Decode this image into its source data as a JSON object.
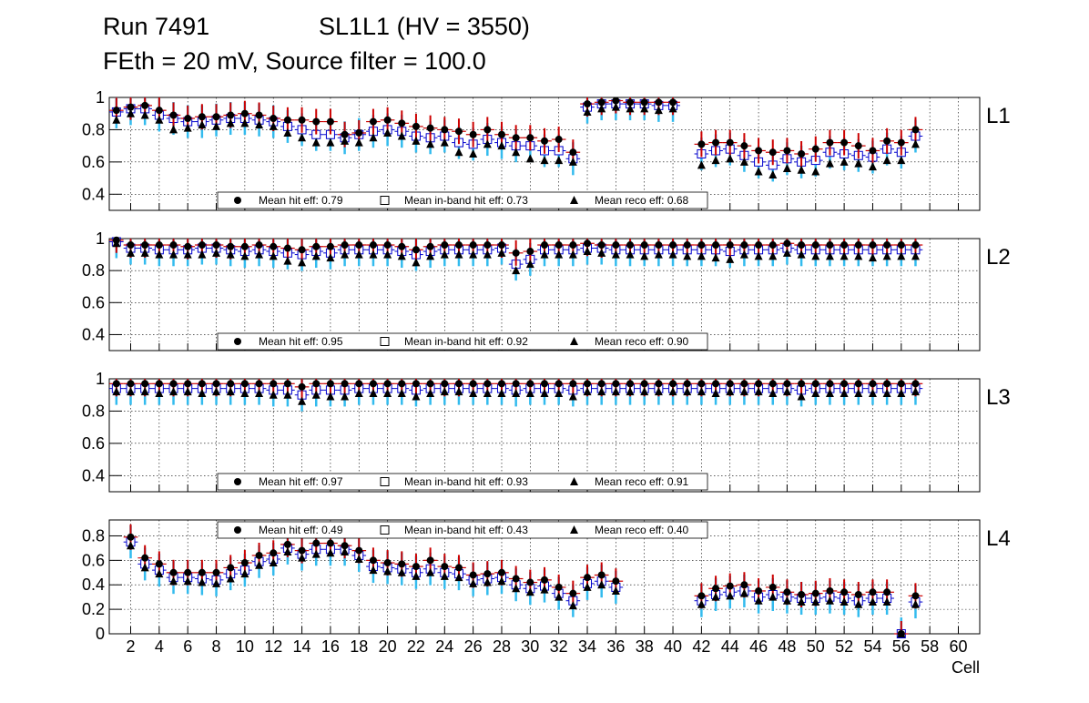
{
  "header": {
    "run": "Run 7491",
    "chamber": "SL1L1 (HV = 3550)",
    "settings": "FEth = 20 mV, Source filter = 100.0"
  },
  "colors": {
    "hit": "#000000",
    "hit_error": "#cc0000",
    "inband": "#0000cc",
    "inband_error": "#33bbee",
    "reco": "#000000",
    "grid": "#000000"
  },
  "chart_data": [
    {
      "type": "scatter",
      "panel_label": "L1",
      "xlabel": "",
      "ylim": [
        0.3,
        1.0
      ],
      "y_ticks": [
        "0.4",
        "0.6",
        "0.8",
        "1"
      ],
      "grid": true,
      "legend_placement": "bottom",
      "legend": [
        "Mean hit  eff: 0.79",
        "Mean in-band hit eff: 0.73",
        "Mean reco eff: 0.68"
      ],
      "cells": [
        1,
        2,
        3,
        4,
        5,
        6,
        7,
        8,
        9,
        10,
        11,
        12,
        13,
        14,
        15,
        16,
        17,
        18,
        19,
        20,
        21,
        22,
        23,
        24,
        25,
        26,
        27,
        28,
        29,
        30,
        31,
        32,
        33,
        34,
        35,
        36,
        37,
        38,
        39,
        40,
        41,
        42,
        43,
        44,
        45,
        46,
        47,
        48,
        49,
        50,
        51,
        52,
        53,
        54,
        55,
        56,
        57
      ],
      "series": [
        {
          "name": "Mean hit  eff: 0.79",
          "marker": "circle",
          "values": [
            0.92,
            0.94,
            0.95,
            0.92,
            0.89,
            0.87,
            0.88,
            0.88,
            0.89,
            0.9,
            0.89,
            0.87,
            0.86,
            0.86,
            0.85,
            0.85,
            0.77,
            0.78,
            0.85,
            0.86,
            0.84,
            0.82,
            0.81,
            0.8,
            0.79,
            0.77,
            0.8,
            0.77,
            0.75,
            0.75,
            0.73,
            0.74,
            0.66,
            0.96,
            0.97,
            0.98,
            0.97,
            0.97,
            0.97,
            0.97,
            null,
            0.71,
            0.72,
            0.72,
            0.7,
            0.67,
            0.66,
            0.67,
            0.65,
            0.68,
            0.72,
            0.72,
            0.7,
            0.67,
            0.73,
            0.72,
            0.8
          ]
        },
        {
          "name": "Mean in-band hit eff: 0.73",
          "marker": "open-square",
          "values": [
            0.91,
            0.93,
            0.93,
            0.89,
            0.87,
            0.85,
            0.85,
            0.86,
            0.87,
            0.87,
            0.86,
            0.85,
            0.82,
            0.8,
            0.77,
            0.77,
            0.75,
            0.77,
            0.79,
            0.8,
            0.79,
            0.76,
            0.75,
            0.76,
            0.72,
            0.71,
            0.74,
            0.72,
            0.7,
            0.7,
            0.67,
            0.67,
            0.62,
            0.94,
            0.96,
            0.96,
            0.96,
            0.96,
            0.95,
            0.95,
            null,
            0.65,
            0.67,
            0.68,
            0.64,
            0.6,
            0.58,
            0.62,
            0.6,
            0.61,
            0.66,
            0.65,
            0.64,
            0.63,
            0.68,
            0.66,
            0.76
          ]
        },
        {
          "name": "Mean reco eff: 0.68",
          "marker": "triangle",
          "values": [
            0.86,
            0.9,
            0.89,
            0.86,
            0.8,
            0.81,
            0.83,
            0.82,
            0.84,
            0.84,
            0.83,
            0.82,
            0.78,
            0.75,
            0.72,
            0.72,
            0.73,
            0.72,
            0.75,
            0.78,
            0.76,
            0.73,
            0.71,
            0.72,
            0.66,
            0.65,
            0.71,
            0.7,
            0.66,
            0.62,
            0.61,
            0.61,
            0.6,
            0.91,
            0.93,
            0.94,
            0.93,
            0.93,
            0.92,
            0.93,
            null,
            0.58,
            0.61,
            0.62,
            0.6,
            0.54,
            0.52,
            0.56,
            0.55,
            0.54,
            0.59,
            0.6,
            0.59,
            0.57,
            0.61,
            0.61,
            0.71
          ]
        }
      ]
    },
    {
      "type": "scatter",
      "panel_label": "L2",
      "xlabel": "",
      "ylim": [
        0.3,
        1.0
      ],
      "y_ticks": [
        "0.4",
        "0.6",
        "0.8",
        "1"
      ],
      "grid": true,
      "legend_placement": "bottom",
      "legend": [
        "Mean hit  eff: 0.95",
        "Mean in-band hit eff: 0.92",
        "Mean reco eff: 0.90"
      ],
      "cells": [
        1,
        2,
        3,
        4,
        5,
        6,
        7,
        8,
        9,
        10,
        11,
        12,
        13,
        14,
        15,
        16,
        17,
        18,
        19,
        20,
        21,
        22,
        23,
        24,
        25,
        26,
        27,
        28,
        29,
        30,
        31,
        32,
        33,
        34,
        35,
        36,
        37,
        38,
        39,
        40,
        41,
        42,
        43,
        44,
        45,
        46,
        47,
        48,
        49,
        50,
        51,
        52,
        53,
        54,
        55,
        56,
        57
      ],
      "series": [
        {
          "name": "Mean hit  eff: 0.95",
          "marker": "circle",
          "values": [
            0.99,
            0.96,
            0.96,
            0.96,
            0.96,
            0.95,
            0.96,
            0.96,
            0.95,
            0.95,
            0.96,
            0.95,
            0.94,
            0.93,
            0.95,
            0.95,
            0.96,
            0.96,
            0.96,
            0.96,
            0.95,
            0.93,
            0.95,
            0.96,
            0.96,
            0.96,
            0.96,
            0.96,
            0.91,
            0.92,
            0.96,
            0.96,
            0.96,
            0.97,
            0.96,
            0.96,
            0.96,
            0.96,
            0.96,
            0.96,
            0.96,
            0.96,
            0.96,
            0.96,
            0.96,
            0.96,
            0.96,
            0.97,
            0.96,
            0.96,
            0.96,
            0.96,
            0.96,
            0.96,
            0.96,
            0.96,
            0.96
          ]
        },
        {
          "name": "Mean in-band hit eff: 0.92",
          "marker": "open-square",
          "values": [
            0.98,
            0.94,
            0.94,
            0.93,
            0.93,
            0.93,
            0.94,
            0.94,
            0.93,
            0.92,
            0.93,
            0.92,
            0.91,
            0.9,
            0.92,
            0.91,
            0.93,
            0.93,
            0.93,
            0.93,
            0.92,
            0.9,
            0.92,
            0.93,
            0.93,
            0.93,
            0.93,
            0.94,
            0.84,
            0.87,
            0.93,
            0.93,
            0.93,
            0.94,
            0.94,
            0.93,
            0.93,
            0.93,
            0.93,
            0.93,
            0.93,
            0.93,
            0.93,
            0.92,
            0.93,
            0.93,
            0.93,
            0.94,
            0.93,
            0.93,
            0.93,
            0.93,
            0.93,
            0.93,
            0.93,
            0.93,
            0.93
          ]
        },
        {
          "name": "Mean reco eff: 0.90",
          "marker": "triangle",
          "values": [
            0.97,
            0.91,
            0.91,
            0.9,
            0.9,
            0.9,
            0.9,
            0.91,
            0.9,
            0.89,
            0.9,
            0.89,
            0.86,
            0.85,
            0.89,
            0.88,
            0.9,
            0.9,
            0.9,
            0.9,
            0.89,
            0.85,
            0.89,
            0.9,
            0.9,
            0.9,
            0.9,
            0.91,
            0.8,
            0.84,
            0.9,
            0.9,
            0.9,
            0.92,
            0.91,
            0.9,
            0.9,
            0.89,
            0.9,
            0.9,
            0.89,
            0.89,
            0.88,
            0.87,
            0.9,
            0.89,
            0.89,
            0.91,
            0.9,
            0.89,
            0.89,
            0.89,
            0.89,
            0.88,
            0.89,
            0.89,
            0.89
          ]
        }
      ]
    },
    {
      "type": "scatter",
      "panel_label": "L3",
      "xlabel": "",
      "ylim": [
        0.3,
        1.0
      ],
      "y_ticks": [
        "0.4",
        "0.6",
        "0.8",
        "1"
      ],
      "grid": true,
      "legend_placement": "bottom",
      "legend": [
        "Mean hit  eff: 0.97",
        "Mean in-band hit eff: 0.93",
        "Mean reco eff: 0.91"
      ],
      "cells": [
        1,
        2,
        3,
        4,
        5,
        6,
        7,
        8,
        9,
        10,
        11,
        12,
        13,
        14,
        15,
        16,
        17,
        18,
        19,
        20,
        21,
        22,
        23,
        24,
        25,
        26,
        27,
        28,
        29,
        30,
        31,
        32,
        33,
        34,
        35,
        36,
        37,
        38,
        39,
        40,
        41,
        42,
        43,
        44,
        45,
        46,
        47,
        48,
        49,
        50,
        51,
        52,
        53,
        54,
        55,
        56,
        57
      ],
      "series": [
        {
          "name": "Mean hit  eff: 0.97",
          "marker": "circle",
          "values": [
            0.97,
            0.97,
            0.97,
            0.97,
            0.97,
            0.97,
            0.97,
            0.97,
            0.97,
            0.97,
            0.97,
            0.97,
            0.97,
            0.95,
            0.97,
            0.97,
            0.97,
            0.97,
            0.97,
            0.97,
            0.97,
            0.97,
            0.97,
            0.97,
            0.97,
            0.97,
            0.97,
            0.97,
            0.97,
            0.97,
            0.97,
            0.97,
            0.97,
            0.97,
            0.97,
            0.97,
            0.97,
            0.97,
            0.97,
            0.97,
            0.97,
            0.97,
            0.97,
            0.97,
            0.97,
            0.97,
            0.97,
            0.97,
            0.97,
            0.97,
            0.97,
            0.97,
            0.97,
            0.97,
            0.97,
            0.97,
            0.97
          ]
        },
        {
          "name": "Mean in-band hit eff: 0.93",
          "marker": "open-square",
          "values": [
            0.94,
            0.94,
            0.94,
            0.94,
            0.94,
            0.94,
            0.94,
            0.94,
            0.94,
            0.94,
            0.94,
            0.93,
            0.93,
            0.9,
            0.93,
            0.93,
            0.93,
            0.94,
            0.94,
            0.94,
            0.94,
            0.93,
            0.94,
            0.94,
            0.94,
            0.94,
            0.94,
            0.94,
            0.93,
            0.94,
            0.94,
            0.94,
            0.93,
            0.94,
            0.94,
            0.94,
            0.94,
            0.94,
            0.94,
            0.94,
            0.94,
            0.94,
            0.94,
            0.94,
            0.94,
            0.94,
            0.94,
            0.94,
            0.93,
            0.94,
            0.94,
            0.94,
            0.94,
            0.94,
            0.94,
            0.94,
            0.94
          ]
        },
        {
          "name": "Mean reco eff: 0.91",
          "marker": "triangle",
          "values": [
            0.92,
            0.92,
            0.92,
            0.91,
            0.92,
            0.92,
            0.91,
            0.92,
            0.92,
            0.91,
            0.91,
            0.9,
            0.9,
            0.86,
            0.9,
            0.89,
            0.89,
            0.91,
            0.91,
            0.91,
            0.91,
            0.89,
            0.91,
            0.92,
            0.92,
            0.91,
            0.91,
            0.91,
            0.91,
            0.91,
            0.91,
            0.91,
            0.89,
            0.92,
            0.92,
            0.92,
            0.92,
            0.92,
            0.92,
            0.92,
            0.92,
            0.92,
            0.91,
            0.92,
            0.92,
            0.92,
            0.91,
            0.92,
            0.89,
            0.91,
            0.91,
            0.91,
            0.91,
            0.91,
            0.91,
            0.91,
            0.92
          ]
        }
      ]
    },
    {
      "type": "scatter",
      "panel_label": "L4",
      "xlabel": "Cell",
      "ylim": [
        0.0,
        0.93
      ],
      "y_ticks": [
        "0",
        "0.2",
        "0.4",
        "0.6",
        "0.8"
      ],
      "x_ticks": [
        "2",
        "4",
        "6",
        "8",
        "10",
        "12",
        "14",
        "16",
        "18",
        "20",
        "22",
        "24",
        "26",
        "28",
        "30",
        "32",
        "34",
        "36",
        "38",
        "40",
        "42",
        "44",
        "46",
        "48",
        "50",
        "52",
        "54",
        "56",
        "58",
        "60"
      ],
      "xlim": [
        0.5,
        61.5
      ],
      "grid": true,
      "legend_placement": "top",
      "legend": [
        "Mean hit  eff: 0.49",
        "Mean in-band hit eff: 0.43",
        "Mean reco eff: 0.40"
      ],
      "cells": [
        1,
        2,
        3,
        4,
        5,
        6,
        7,
        8,
        9,
        10,
        11,
        12,
        13,
        14,
        15,
        16,
        17,
        18,
        19,
        20,
        21,
        22,
        23,
        24,
        25,
        26,
        27,
        28,
        29,
        30,
        31,
        32,
        33,
        34,
        35,
        36,
        37,
        38,
        39,
        40,
        41,
        42,
        43,
        44,
        45,
        46,
        47,
        48,
        49,
        50,
        51,
        52,
        53,
        54,
        55,
        56,
        57
      ],
      "series": [
        {
          "name": "Mean hit  eff: 0.49",
          "marker": "circle",
          "values": [
            null,
            0.79,
            0.62,
            0.57,
            0.5,
            0.5,
            0.5,
            0.5,
            0.54,
            0.58,
            0.64,
            0.66,
            0.73,
            0.68,
            0.74,
            0.74,
            0.72,
            0.68,
            0.6,
            0.58,
            0.57,
            0.55,
            0.6,
            0.55,
            0.54,
            0.48,
            0.49,
            0.5,
            0.45,
            0.42,
            0.44,
            0.38,
            0.33,
            0.46,
            0.48,
            0.43,
            null,
            null,
            null,
            null,
            null,
            0.31,
            0.37,
            0.39,
            0.4,
            0.35,
            0.38,
            0.34,
            0.32,
            0.33,
            0.35,
            0.34,
            0.32,
            0.34,
            0.34,
            0.0,
            0.31
          ]
        },
        {
          "name": "Mean in-band hit eff: 0.43",
          "marker": "open-square",
          "values": [
            null,
            0.75,
            0.57,
            0.52,
            0.46,
            0.46,
            0.45,
            0.44,
            0.49,
            0.52,
            0.59,
            0.61,
            0.7,
            0.65,
            0.69,
            0.69,
            0.69,
            0.64,
            0.55,
            0.54,
            0.53,
            0.5,
            0.53,
            0.5,
            0.49,
            0.44,
            0.45,
            0.46,
            0.4,
            0.37,
            0.39,
            0.33,
            0.27,
            0.41,
            0.43,
            0.38,
            null,
            null,
            null,
            null,
            null,
            0.27,
            0.32,
            0.34,
            0.35,
            0.3,
            0.32,
            0.3,
            0.29,
            0.29,
            0.3,
            0.29,
            0.27,
            0.29,
            0.29,
            0.0,
            0.26
          ]
        },
        {
          "name": "Mean reco eff: 0.40",
          "marker": "triangle",
          "values": [
            null,
            0.72,
            0.54,
            0.49,
            0.43,
            0.43,
            0.42,
            0.41,
            0.45,
            0.49,
            0.56,
            0.58,
            0.67,
            0.62,
            0.65,
            0.66,
            0.67,
            0.61,
            0.52,
            0.51,
            0.5,
            0.47,
            0.5,
            0.47,
            0.46,
            0.41,
            0.42,
            0.43,
            0.37,
            0.34,
            0.36,
            0.3,
            0.23,
            0.38,
            0.4,
            0.35,
            null,
            null,
            null,
            null,
            null,
            0.24,
            0.3,
            0.31,
            0.33,
            0.27,
            0.3,
            0.27,
            0.26,
            0.26,
            0.27,
            0.26,
            0.24,
            0.26,
            0.26,
            0.0,
            0.24
          ]
        }
      ]
    }
  ]
}
